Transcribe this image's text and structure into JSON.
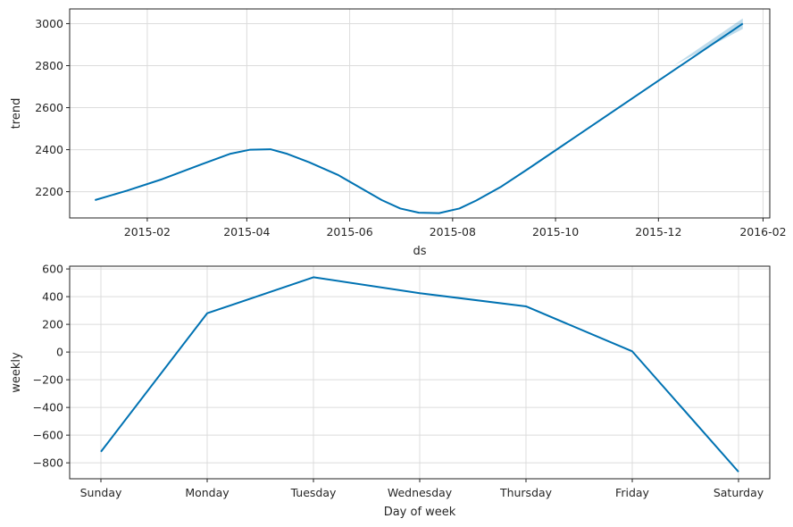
{
  "chart_data": [
    {
      "type": "line",
      "xlabel": "ds",
      "ylabel": "trend",
      "x_tick_labels": [
        "2015-02",
        "2015-04",
        "2015-06",
        "2015-08",
        "2015-10",
        "2015-12",
        "2016-02"
      ],
      "y_tick_labels": [
        "2200",
        "2400",
        "2600",
        "2800",
        "3000"
      ],
      "ylim": [
        2075,
        3070
      ],
      "xlim": [
        "2014-12-17",
        "2016-02-05"
      ],
      "grid": true,
      "line_color": "#0072B2",
      "band_color": "#0072B2",
      "series": [
        {
          "x": [
            "2015-01-01",
            "2015-01-20",
            "2015-02-10",
            "2015-03-05",
            "2015-03-22",
            "2015-04-03",
            "2015-04-15",
            "2015-04-25",
            "2015-05-08",
            "2015-05-25",
            "2015-06-20",
            "2015-07-01",
            "2015-07-12",
            "2015-07-24",
            "2015-08-05",
            "2015-08-15",
            "2015-08-30",
            "2015-09-15",
            "2016-01-20"
          ],
          "y": [
            2160,
            2205,
            2260,
            2330,
            2380,
            2400,
            2402,
            2380,
            2340,
            2280,
            2160,
            2120,
            2100,
            2098,
            2120,
            2158,
            2225,
            2310,
            3000
          ]
        }
      ],
      "uncertainty_band": {
        "x": [
          "2015-12-10",
          "2016-01-20"
        ],
        "lower": [
          2800,
          2975
        ],
        "upper": [
          2800,
          3025
        ]
      }
    },
    {
      "type": "line",
      "xlabel": "Day of week",
      "ylabel": "weekly",
      "categories": [
        "Sunday",
        "Monday",
        "Tuesday",
        "Wednesday",
        "Thursday",
        "Friday",
        "Saturday"
      ],
      "y_tick_labels": [
        "−800",
        "−600",
        "−400",
        "−200",
        "0",
        "200",
        "400",
        "600"
      ],
      "ylim": [
        -915,
        620
      ],
      "grid": true,
      "line_color": "#0072B2",
      "series": [
        {
          "values": [
            -720,
            280,
            540,
            425,
            330,
            5,
            -865
          ]
        }
      ]
    }
  ]
}
